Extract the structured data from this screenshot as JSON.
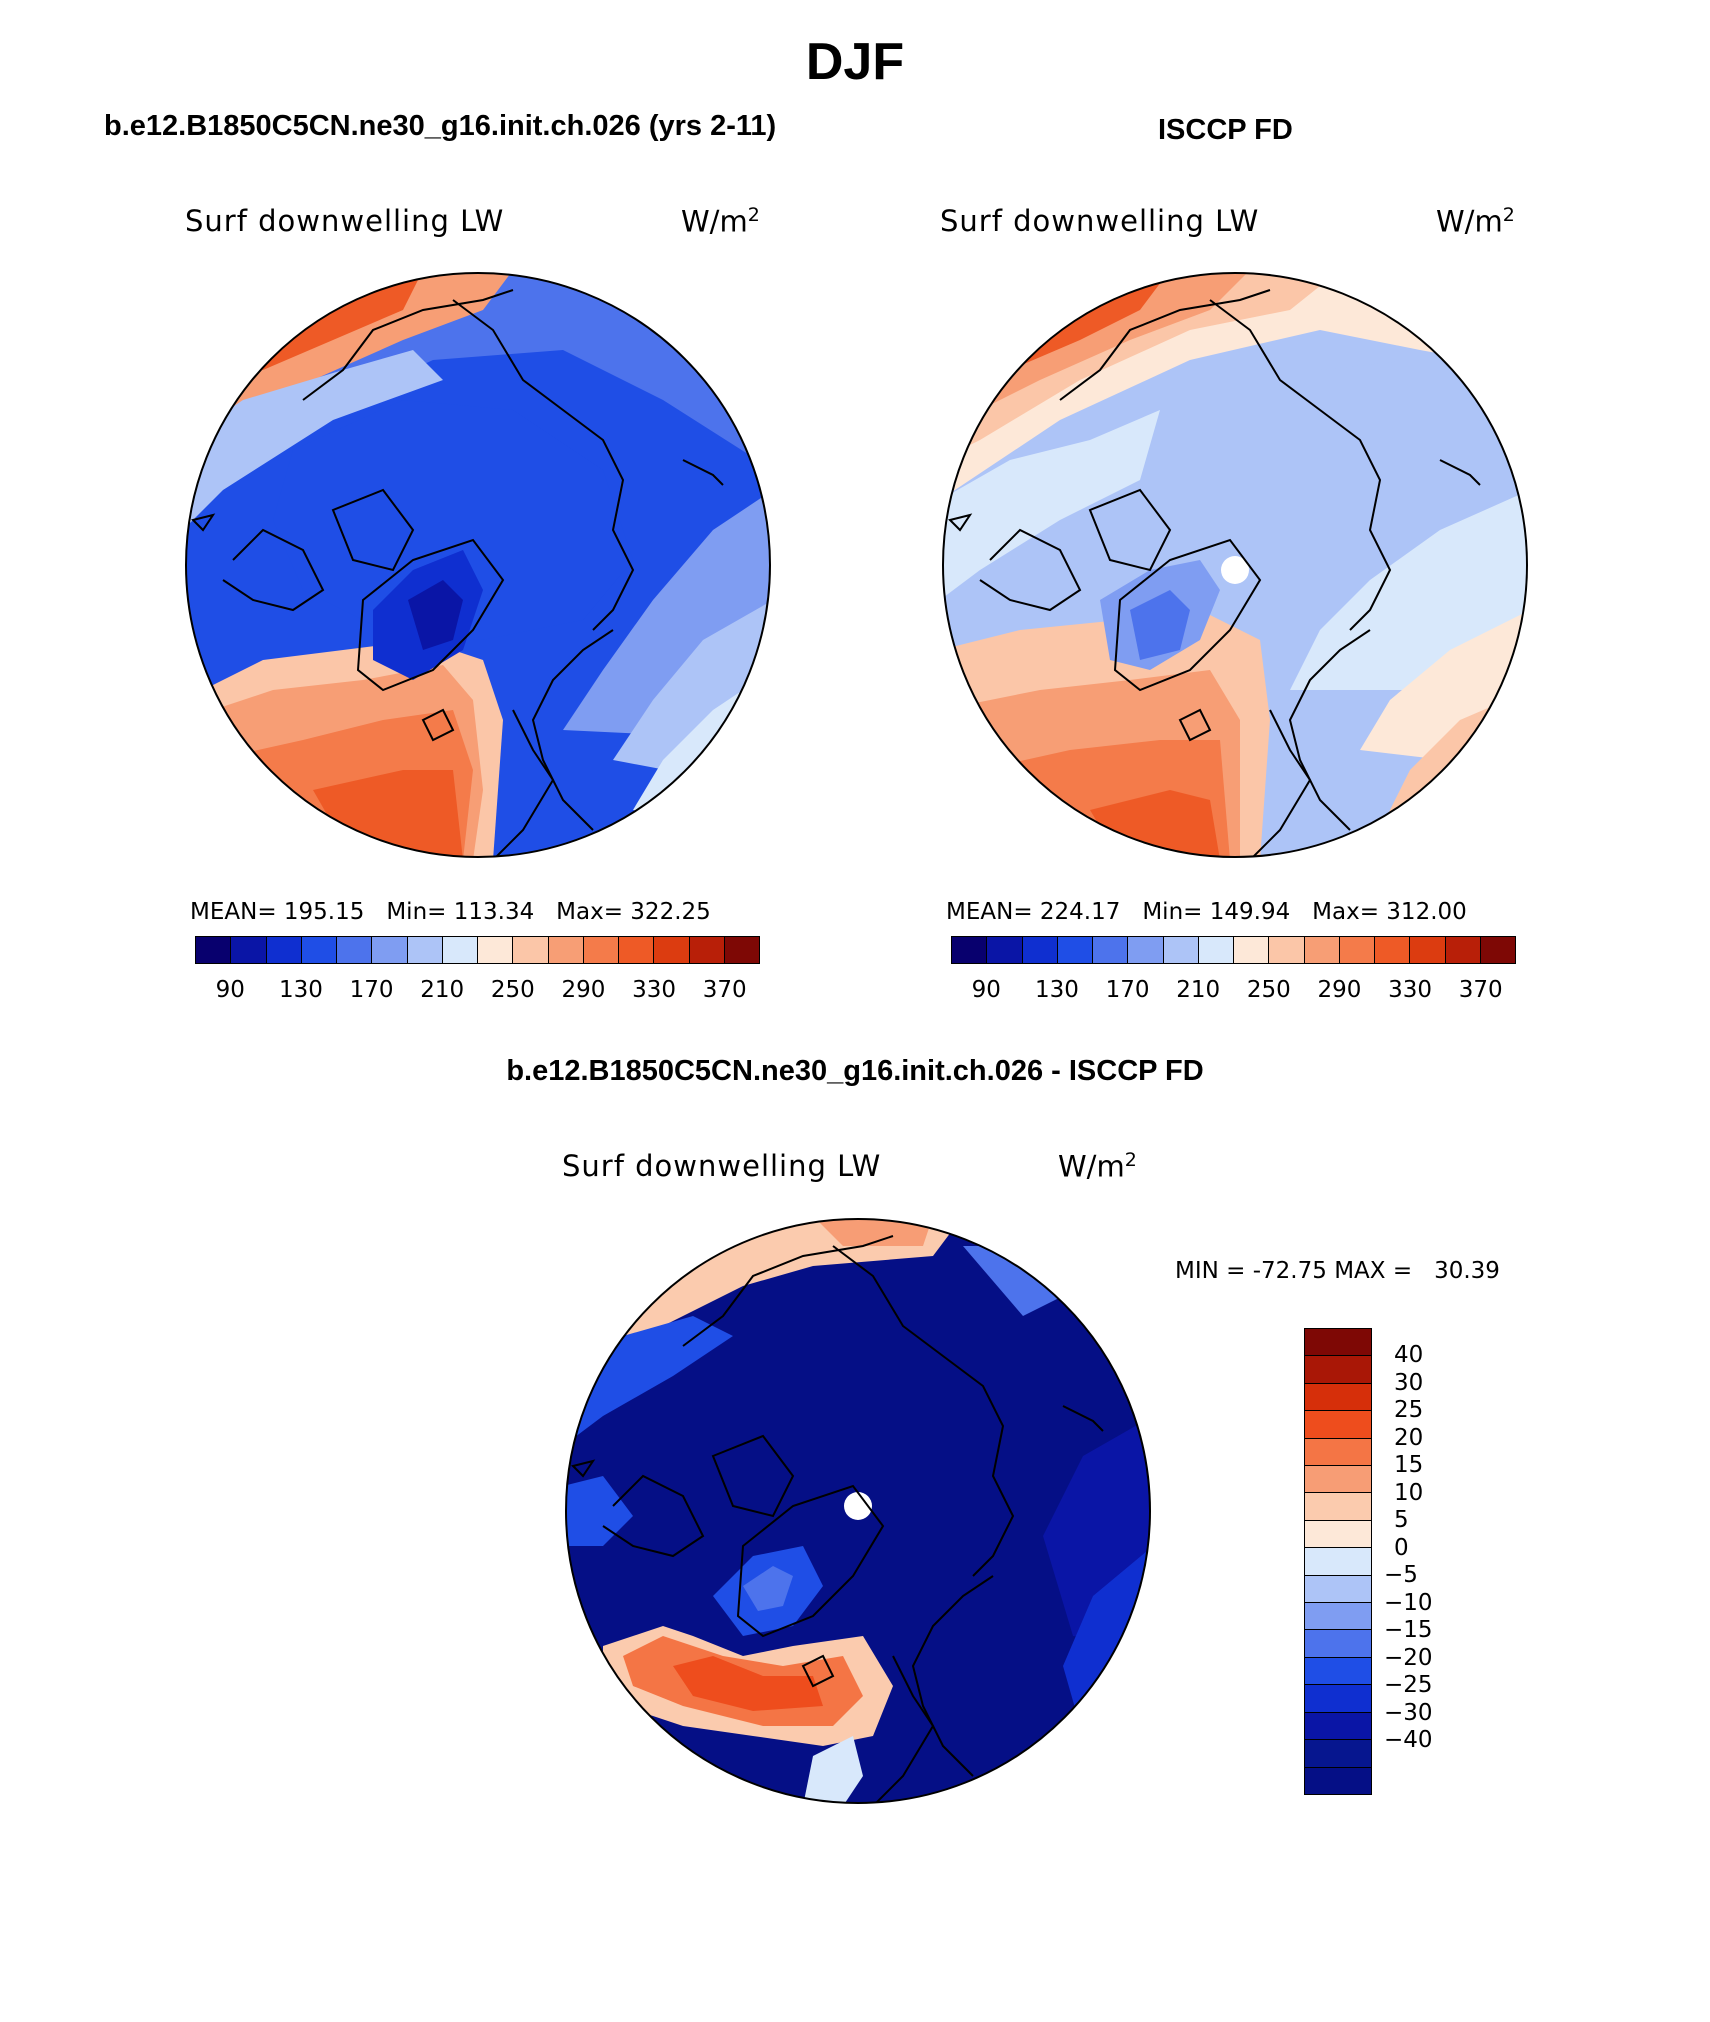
{
  "title": "DJF",
  "panels": {
    "model": {
      "header": "b.e12.B1850C5CN.ne30_g16.init.ch.026 (yrs 2-11)",
      "variable": "Surf downwelling LW",
      "units": "W/m",
      "units_exp": "2",
      "stats": {
        "mean_label": "MEAN=",
        "mean": "195.15",
        "min_label": "Min=",
        "min": "113.34",
        "max_label": "Max=",
        "max": "322.25"
      }
    },
    "obs": {
      "header": "ISCCP FD",
      "variable": "Surf downwelling LW",
      "units": "W/m",
      "units_exp": "2",
      "stats": {
        "mean_label": "MEAN=",
        "mean": "224.17",
        "min_label": "Min=",
        "min": "149.94",
        "max_label": "Max=",
        "max": "312.00"
      }
    },
    "diff": {
      "header": "b.e12.B1850C5CN.ne30_g16.init.ch.026 - ISCCP FD",
      "variable": "Surf downwelling LW",
      "units": "W/m",
      "units_exp": "2",
      "stats": {
        "min_label": "MIN =",
        "min": "-72.75",
        "max_label": "MAX =",
        "max": "30.39"
      }
    }
  },
  "colorbars": {
    "absolute": {
      "colors": [
        "#08006e",
        "#0a15a6",
        "#0f2fd0",
        "#1f4ee6",
        "#4d73ec",
        "#7f9df2",
        "#adc4f7",
        "#d8e8fb",
        "#fde8d8",
        "#fbc6a8",
        "#f79e75",
        "#f47b4a",
        "#ee5a26",
        "#dc3c10",
        "#b81f08",
        "#7e0805"
      ],
      "tick_labels": [
        "90",
        "130",
        "170",
        "210",
        "250",
        "290",
        "330",
        "370"
      ]
    },
    "difference": {
      "colors": [
        "#7e0805",
        "#a91706",
        "#d62f0a",
        "#ee4d1d",
        "#f47545",
        "#f79d75",
        "#fbcbae",
        "#fde8d8",
        "#d8e8fb",
        "#adc4f7",
        "#7f9df2",
        "#4d73ec",
        "#1f4ee6",
        "#0f2fd0",
        "#0a15a6",
        "#06168f",
        "#050f86"
      ],
      "tick_labels": [
        "40",
        "30",
        "25",
        "20",
        "15",
        "10",
        "5",
        "0",
        "−5",
        "−10",
        "−15",
        "−20",
        "−25",
        "−30",
        "−40"
      ]
    }
  }
}
